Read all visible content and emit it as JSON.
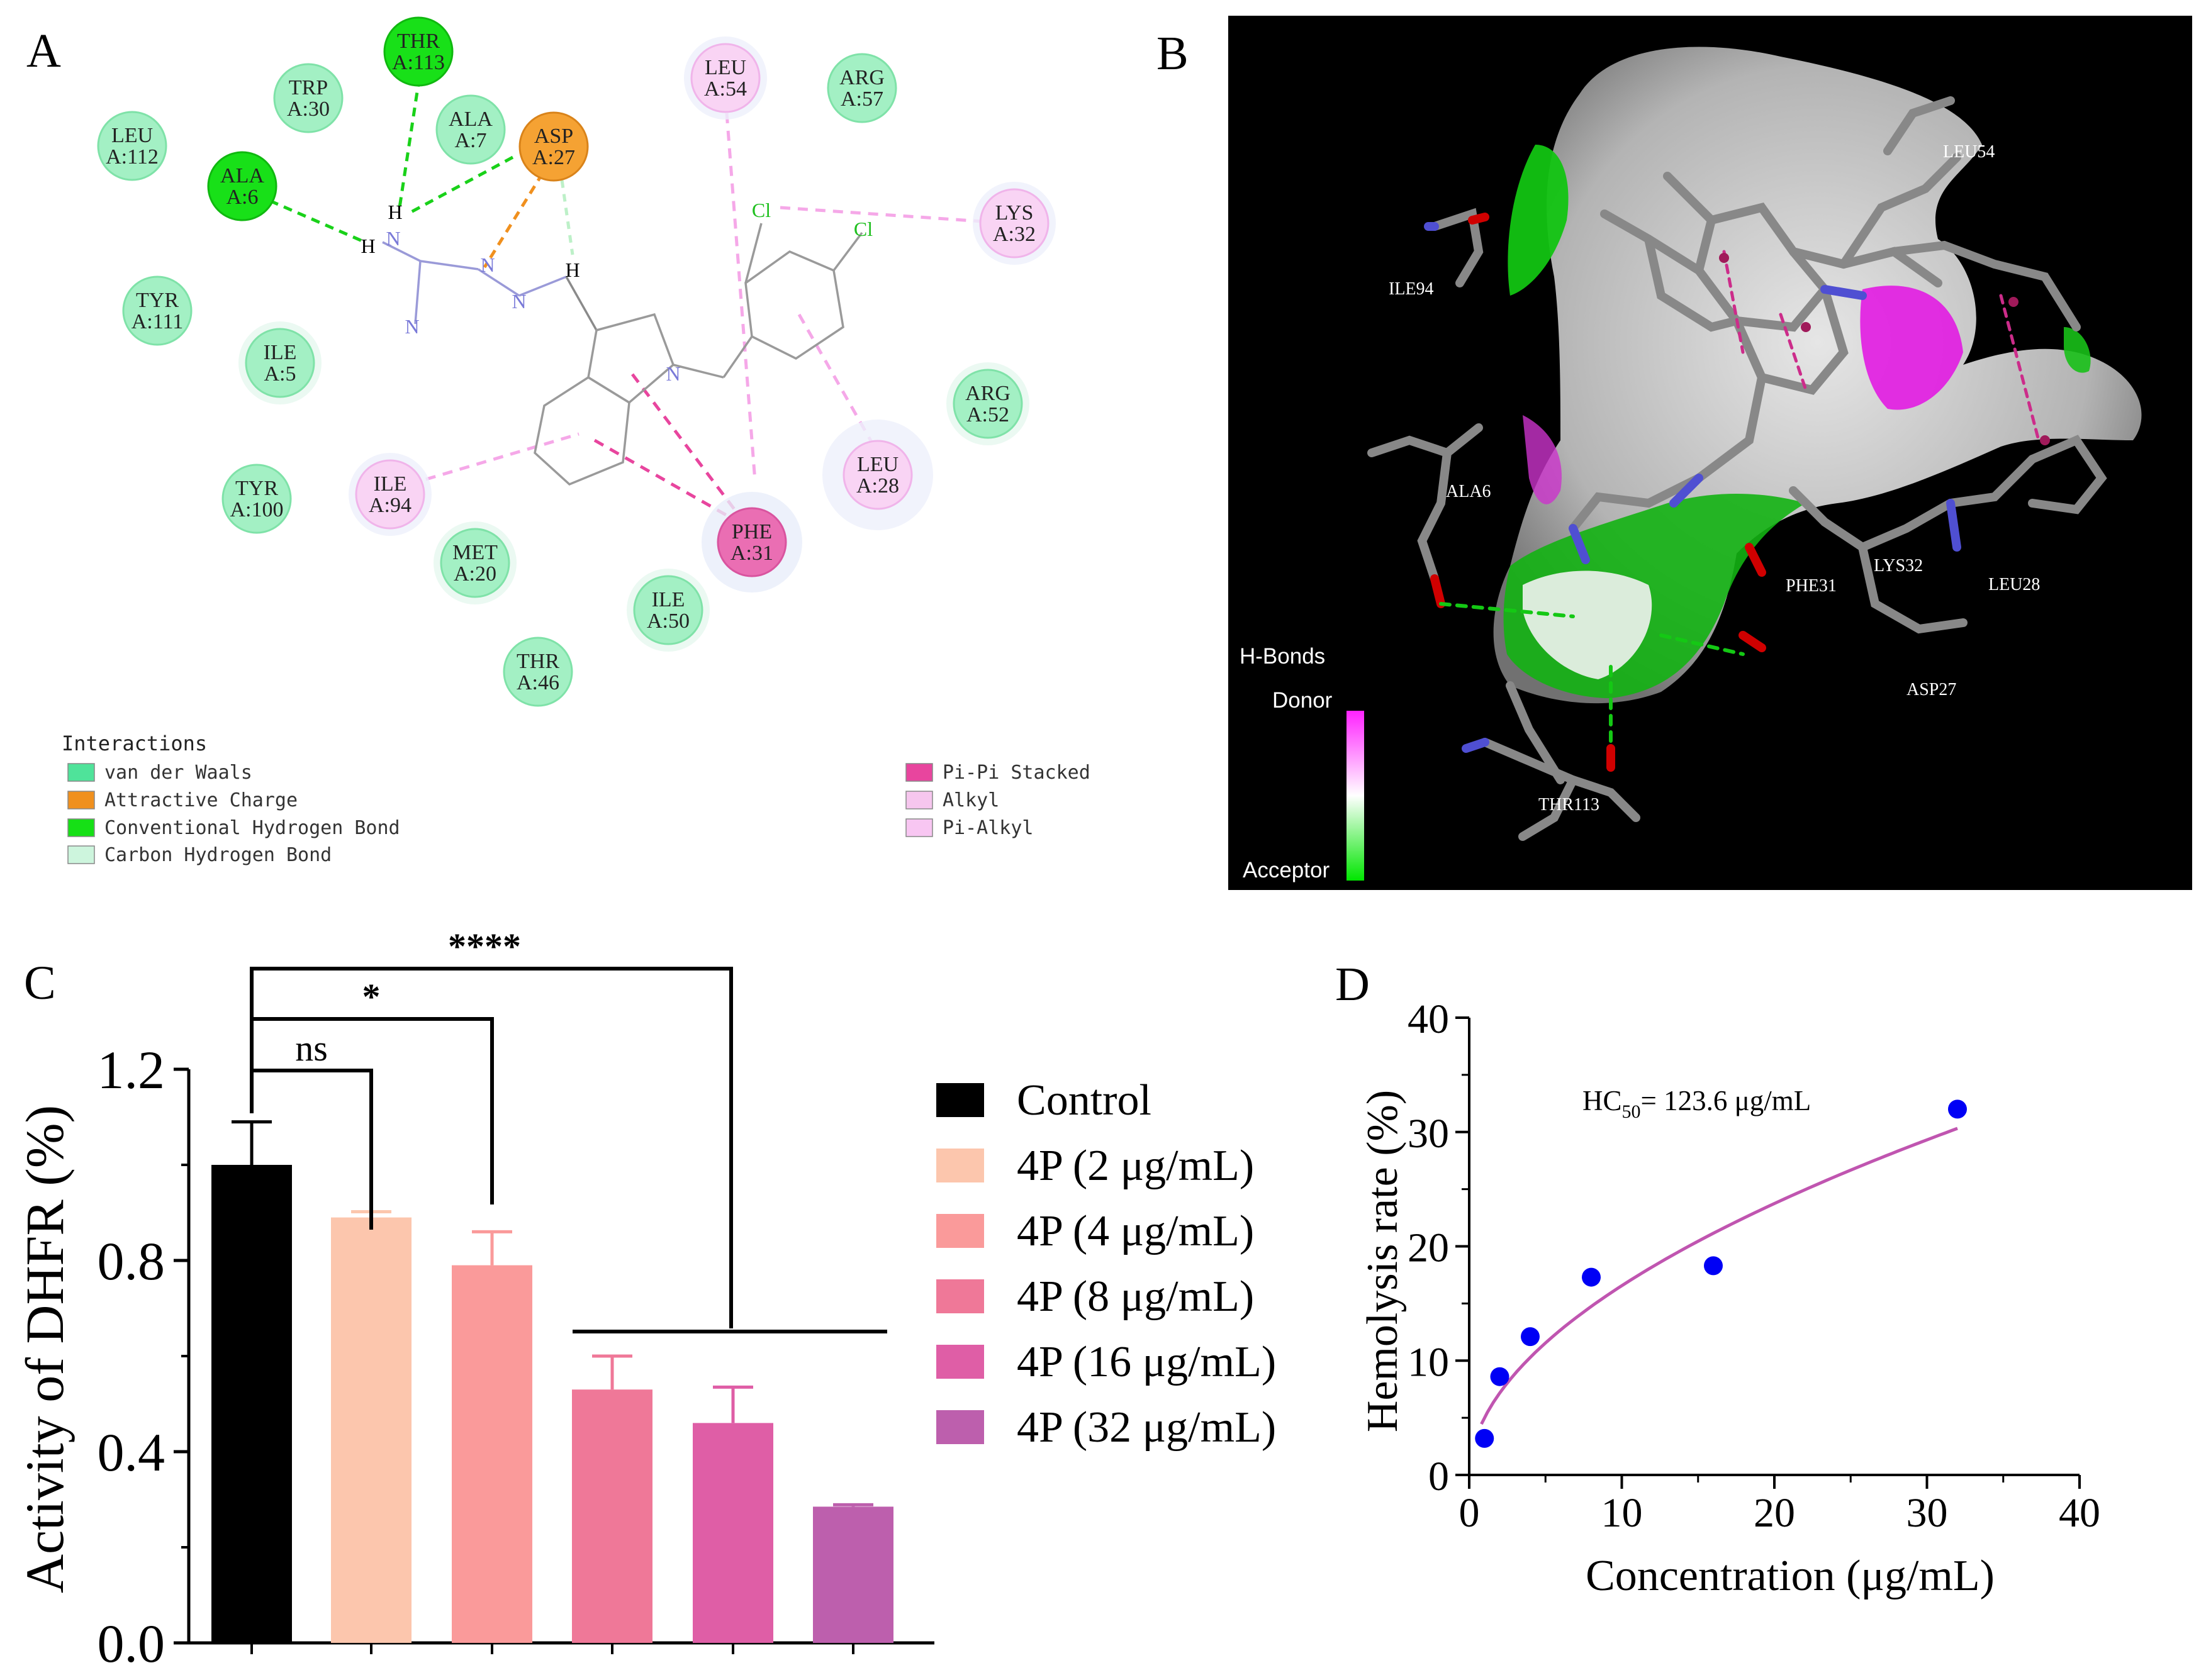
{
  "panels": {
    "a": "A",
    "b": "B",
    "c": "C",
    "d": "D"
  },
  "panel_a": {
    "residues": [
      {
        "name": "LEU",
        "id": "A:112",
        "type": "vdw"
      },
      {
        "name": "TRP",
        "id": "A:30",
        "type": "vdw"
      },
      {
        "name": "THR",
        "id": "A:113",
        "type": "hbond"
      },
      {
        "name": "ALA",
        "id": "A:7",
        "type": "vdw"
      },
      {
        "name": "ASP",
        "id": "A:27",
        "type": "charge"
      },
      {
        "name": "ALA",
        "id": "A:6",
        "type": "hbond"
      },
      {
        "name": "LEU",
        "id": "A:54",
        "type": "alkyl"
      },
      {
        "name": "ARG",
        "id": "A:57",
        "type": "vdw"
      },
      {
        "name": "LYS",
        "id": "A:32",
        "type": "alkyl"
      },
      {
        "name": "TYR",
        "id": "A:111",
        "type": "vdw"
      },
      {
        "name": "ILE",
        "id": "A:5",
        "type": "vdw"
      },
      {
        "name": "ARG",
        "id": "A:52",
        "type": "vdw"
      },
      {
        "name": "LEU",
        "id": "A:28",
        "type": "alkyl"
      },
      {
        "name": "TYR",
        "id": "A:100",
        "type": "vdw"
      },
      {
        "name": "ILE",
        "id": "A:94",
        "type": "alkyl"
      },
      {
        "name": "PHE",
        "id": "A:31",
        "type": "pipi"
      },
      {
        "name": "MET",
        "id": "A:20",
        "type": "vdw"
      },
      {
        "name": "ILE",
        "id": "A:50",
        "type": "vdw"
      },
      {
        "name": "THR",
        "id": "A:46",
        "type": "vdw"
      }
    ],
    "atoms": {
      "h": "H",
      "n": "N",
      "cl": "Cl"
    },
    "legend_title": "Interactions",
    "legend": [
      {
        "label": "van der Waals",
        "color": "#4fe39a"
      },
      {
        "label": "Attractive Charge",
        "color": "#f0901e"
      },
      {
        "label": "Conventional Hydrogen Bond",
        "color": "#16e016"
      },
      {
        "label": "Carbon Hydrogen Bond",
        "color": "#cdf5dd"
      },
      {
        "label": "Pi-Pi Stacked",
        "color": "#e8459e"
      },
      {
        "label": "Alkyl",
        "color": "#f6c6ee"
      },
      {
        "label": "Pi-Alkyl",
        "color": "#f8c6f2"
      }
    ]
  },
  "panel_b": {
    "residue_labels": [
      "LEU54",
      "ILE94",
      "ALA6",
      "PHE31",
      "LYS32",
      "LEU28",
      "ASP27",
      "THR113"
    ],
    "hbond_title": "H-Bonds",
    "donor": "Donor",
    "acceptor": "Acceptor"
  },
  "chart_data": [
    {
      "type": "bar",
      "panel": "C",
      "ylabel": "Activity of DHFR (%)",
      "ylim": [
        0,
        1.2
      ],
      "yticks": [
        "0.0",
        "0.4",
        "0.8",
        "1.2"
      ],
      "categories": [
        "Control",
        "4P (2 μg/mL)",
        "4P (4 μg/mL)",
        "4P (8 μg/mL)",
        "4P (16 μg/mL)",
        "4P (32 μg/mL)"
      ],
      "values": [
        1.0,
        0.89,
        0.79,
        0.53,
        0.46,
        0.285
      ],
      "errors": [
        0.09,
        0.012,
        0.07,
        0.07,
        0.075,
        0.004
      ],
      "colors": [
        "#000000",
        "#fcc6ad",
        "#fa9a9a",
        "#ef7898",
        "#df5ea6",
        "#bd5fad"
      ],
      "significance": [
        "ns",
        "*",
        "****"
      ]
    },
    {
      "type": "scatter",
      "panel": "D",
      "xlabel": "Concentration (μg/mL)",
      "ylabel": "Hemolysis rate (%)",
      "xlim": [
        0,
        40
      ],
      "ylim": [
        0,
        40
      ],
      "xticks": [
        "0",
        "10",
        "20",
        "30",
        "40"
      ],
      "yticks": [
        "0",
        "10",
        "20",
        "30",
        "40"
      ],
      "annotation": {
        "prefix": "HC",
        "sub": "50",
        "text": "= 123.6 μg/mL"
      },
      "points": [
        {
          "x": 1,
          "y": 3.2
        },
        {
          "x": 2,
          "y": 8.6
        },
        {
          "x": 4,
          "y": 12.1
        },
        {
          "x": 8,
          "y": 17.3
        },
        {
          "x": 16,
          "y": 18.3
        },
        {
          "x": 32,
          "y": 32
        }
      ],
      "fit": {
        "model": "power",
        "a": 5.0,
        "b": 0.52,
        "x_from": 0.8,
        "x_to": 32
      },
      "point_color": "#0000f5",
      "fit_color": "#c055b0"
    }
  ]
}
